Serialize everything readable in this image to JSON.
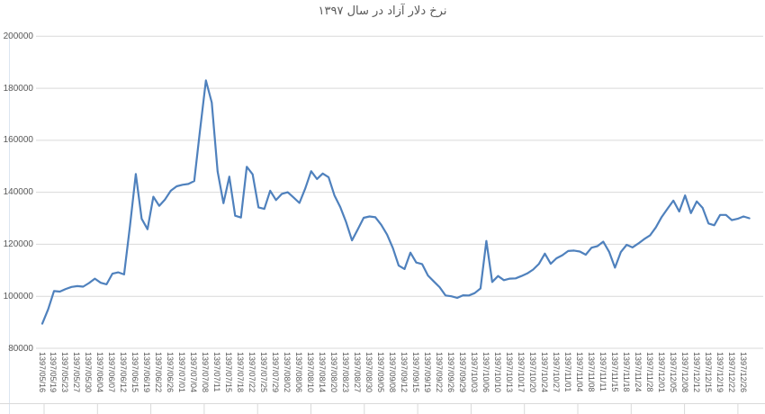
{
  "chart_data": {
    "type": "line",
    "title": "نرخ دلار آزاد در سال ۱۳۹۷",
    "grid": true,
    "legend": "none",
    "ylim": [
      80000,
      200000
    ],
    "y_ticks": [
      200000,
      180000,
      160000,
      140000,
      120000,
      100000,
      80000
    ],
    "label_every": 2,
    "x_labels": [
      "1397/05/16",
      "1397/05/19",
      "1397/05/23",
      "1397/05/27",
      "1397/05/30",
      "1397/06/04",
      "1397/06/07",
      "1397/06/12",
      "1397/06/15",
      "1397/06/19",
      "1397/06/22",
      "1397/06/26",
      "1397/07/01",
      "1397/07/04",
      "1397/07/08",
      "1397/07/11",
      "1397/07/15",
      "1397/07/18",
      "1397/07/22",
      "1397/07/25",
      "1397/07/29",
      "1397/08/02",
      "1397/08/06",
      "1397/08/10",
      "1397/08/14",
      "1397/08/20",
      "1397/08/23",
      "1397/08/27",
      "1397/08/30",
      "1397/09/05",
      "1397/09/08",
      "1397/09/12",
      "1397/09/15",
      "1397/09/19",
      "1397/09/22",
      "1397/09/26",
      "1397/09/29",
      "1397/10/03",
      "1397/10/06",
      "1397/10/10",
      "1397/10/13",
      "1397/10/17",
      "1397/10/20",
      "1397/10/24",
      "1397/10/27",
      "1397/11/01",
      "1397/11/04",
      "1397/11/08",
      "1397/11/11",
      "1397/11/15",
      "1397/11/18",
      "1397/11/24",
      "1397/11/28",
      "1397/12/01",
      "1397/12/05",
      "1397/12/08",
      "1397/12/12",
      "1397/12/15",
      "1397/12/19",
      "1397/12/22",
      "1397/12/26"
    ],
    "values": [
      89500,
      95000,
      102000,
      101800,
      102800,
      103600,
      103900,
      103700,
      105100,
      106800,
      105200,
      104600,
      108700,
      109200,
      108400,
      127000,
      147000,
      129800,
      125800,
      138300,
      134800,
      137200,
      140600,
      142300,
      142900,
      143200,
      144300,
      164000,
      183000,
      174500,
      148000,
      135800,
      146000,
      131000,
      130300,
      149800,
      146900,
      134200,
      133600,
      140600,
      137000,
      139400,
      140000,
      138000,
      135900,
      141500,
      148100,
      145100,
      147200,
      145800,
      138800,
      134300,
      128500,
      121500,
      125800,
      130200,
      130700,
      130400,
      127500,
      123700,
      118500,
      111800,
      110500,
      116800,
      113000,
      112400,
      108000,
      105700,
      103500,
      100300,
      100000,
      99400,
      100400,
      100300,
      101200,
      103000,
      121300,
      105500,
      107800,
      106200,
      106800,
      106900,
      107800,
      108800,
      110300,
      112500,
      116400,
      112500,
      114600,
      115800,
      117400,
      117600,
      117200,
      116000,
      118700,
      119300,
      121000,
      117100,
      111000,
      117000,
      119800,
      118800,
      120300,
      122000,
      123400,
      126500,
      130500,
      133700,
      136800,
      132600,
      138800,
      132000,
      136500,
      134000,
      128000,
      127300,
      131300,
      131300,
      129300,
      129800,
      130700,
      130000
    ],
    "colors": {
      "line": "#4f81bd",
      "grid": "#d9d9d9",
      "text": "#595959",
      "sheet_border": "#d9d9d9",
      "sheet_border_light": "#dbe5f1"
    }
  }
}
